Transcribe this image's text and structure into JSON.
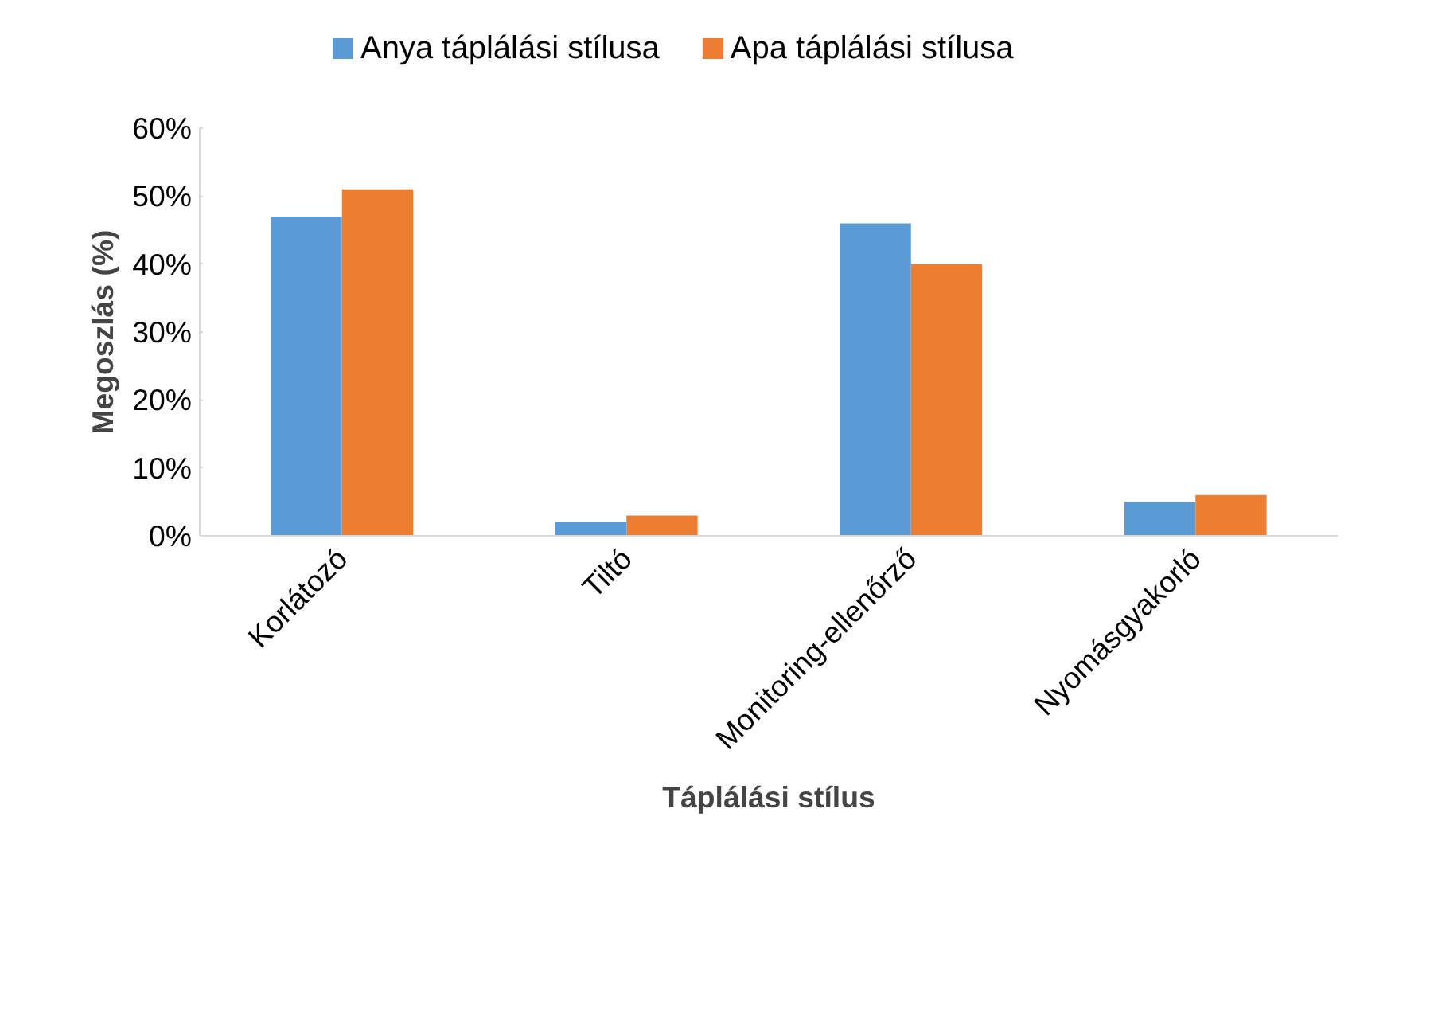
{
  "chart_data": {
    "type": "bar",
    "xlabel": "Táplálási stílus",
    "ylabel": "Megoszlás (%)",
    "categories": [
      "Korlátozó",
      "Tiltó",
      "Monitoring-ellenőrző",
      "Nyomásgyakorló"
    ],
    "series": [
      {
        "name": "Anya táplálási stílusa",
        "color": "#5b9bd5",
        "values": [
          47,
          2,
          46,
          5
        ]
      },
      {
        "name": "Apa táplálási stílusa",
        "color": "#ed7d31",
        "values": [
          51,
          3,
          40,
          6
        ]
      }
    ],
    "ylim": [
      0,
      60
    ],
    "yticks": [
      {
        "value": 0,
        "label": "0%"
      },
      {
        "value": 10,
        "label": "10%"
      },
      {
        "value": 20,
        "label": "20%"
      },
      {
        "value": 30,
        "label": "30%"
      },
      {
        "value": 40,
        "label": "40%"
      },
      {
        "value": 50,
        "label": "50%"
      },
      {
        "value": 60,
        "label": "60%"
      }
    ],
    "grid": false,
    "legend": "top"
  }
}
